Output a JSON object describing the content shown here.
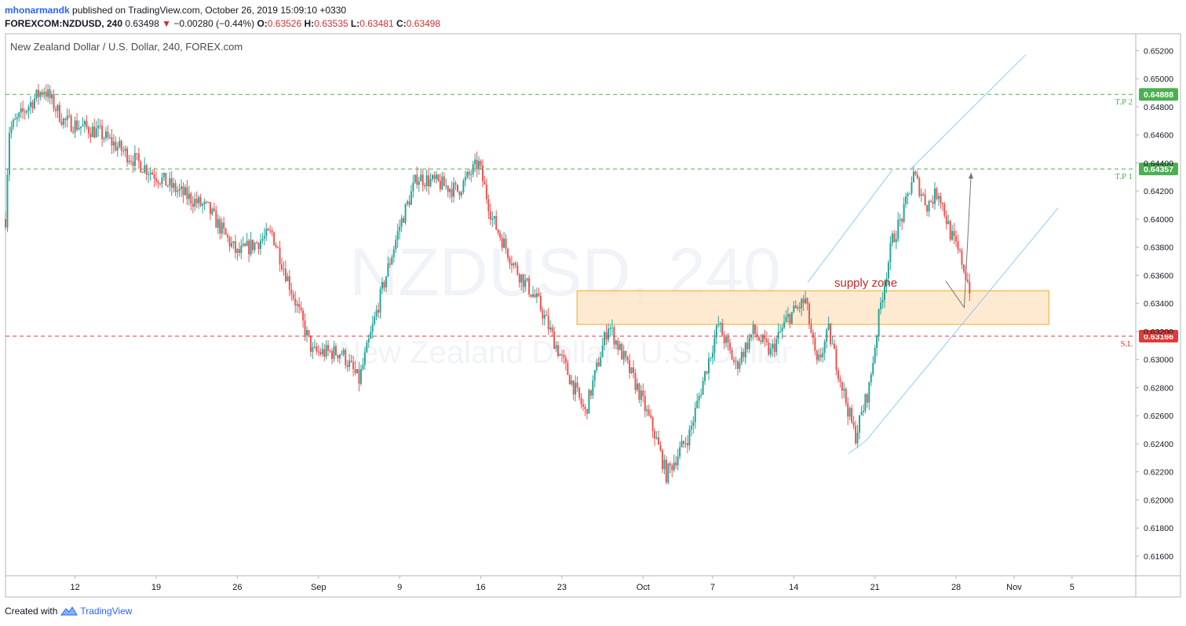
{
  "header": {
    "author": "mhonarmandk",
    "published": "published on TradingView.com, October 26, 2019 15:09:10 +0330",
    "symbol": "FOREXCOM:NZDUSD, 240",
    "last": "0.63498",
    "change": "−0.00280 (−0.44%)",
    "o_label": "O:",
    "o": "0.63526",
    "h_label": "H:",
    "h": "0.63535",
    "l_label": "L:",
    "l": "0.63481",
    "c_label": "C:",
    "c": "0.63498"
  },
  "footer": {
    "created_with": "Created with",
    "brand": "TradingView"
  },
  "colors": {
    "up": "#26a69a",
    "down": "#ef5350",
    "tp": "#4caf50",
    "sl": "#e53935",
    "zone_fill": "#fde3c0",
    "zone_border": "#f5a623",
    "channel": "#90caf9",
    "arrow": "#757575"
  },
  "chart_data": {
    "type": "candlestick",
    "title": "New Zealand Dollar / U.S. Dollar, 240, FOREX.com",
    "watermark_symbol": "NZDUSD, 240",
    "watermark_name": "New Zealand Dollar / U.S. Dollar",
    "ylim": [
      0.6146,
      0.6532
    ],
    "y_ticks": [
      "0.65200",
      "0.65000",
      "0.64800",
      "0.64600",
      "0.64400",
      "0.64200",
      "0.64000",
      "0.63800",
      "0.63600",
      "0.63400",
      "0.63200",
      "0.63000",
      "0.62800",
      "0.62600",
      "0.62400",
      "0.62200",
      "0.62000",
      "0.61800",
      "0.61600"
    ],
    "x_ticks": [
      {
        "label": "12",
        "day": 12
      },
      {
        "label": "19",
        "day": 19
      },
      {
        "label": "26",
        "day": 26
      },
      {
        "label": "Sep",
        "day": 33
      },
      {
        "label": "9",
        "day": 40
      },
      {
        "label": "16",
        "day": 47
      },
      {
        "label": "23",
        "day": 54
      },
      {
        "label": "Oct",
        "day": 61
      },
      {
        "label": "7",
        "day": 67
      },
      {
        "label": "14",
        "day": 74
      },
      {
        "label": "21",
        "day": 81
      },
      {
        "label": "28",
        "day": 88
      },
      {
        "label": "Nov",
        "day": 93
      },
      {
        "label": "5",
        "day": 98
      }
    ],
    "horizontal_lines": [
      {
        "label": "T.P 2",
        "price": "0.64888",
        "value": 0.64888,
        "kind": "tp"
      },
      {
        "label": "T.P 1",
        "price": "0.64357",
        "value": 0.64357,
        "kind": "tp"
      },
      {
        "label": "S.L",
        "price": "0.63166",
        "value": 0.63166,
        "kind": "sl"
      }
    ],
    "zone": {
      "label": "supply zone",
      "y_low": 0.6325,
      "y_high": 0.6349,
      "day_start": 55.3,
      "day_end": 96.0
    },
    "channel_lines": [
      {
        "p1": {
          "day": 84.0,
          "y": 0.6435
        },
        "p2": {
          "day": 94.0,
          "y": 0.6517
        }
      },
      {
        "p1": {
          "day": 75.2,
          "y": 0.6355
        },
        "p2": {
          "day": 82.5,
          "y": 0.6435
        }
      },
      {
        "p1": {
          "day": 80.2,
          "y": 0.6242
        },
        "p2": {
          "day": 96.8,
          "y": 0.6408
        }
      },
      {
        "p1": {
          "day": 78.7,
          "y": 0.6233
        },
        "p2": {
          "day": 80.2,
          "y": 0.6242
        }
      }
    ],
    "projection_arrow": [
      {
        "day": 87.1,
        "y": 0.6356
      },
      {
        "day": 88.7,
        "y": 0.6337
      },
      {
        "day": 89.3,
        "y": 0.6433
      }
    ],
    "path_anchors": [
      {
        "day": 6.0,
        "y": 0.64
      },
      {
        "day": 6.3,
        "y": 0.6463
      },
      {
        "day": 8.2,
        "y": 0.6483
      },
      {
        "day": 9.3,
        "y": 0.6493
      },
      {
        "day": 11.0,
        "y": 0.647
      },
      {
        "day": 14.0,
        "y": 0.6462
      },
      {
        "day": 17.0,
        "y": 0.6443
      },
      {
        "day": 20.5,
        "y": 0.6422
      },
      {
        "day": 23.5,
        "y": 0.6407
      },
      {
        "day": 26.0,
        "y": 0.6375
      },
      {
        "day": 29.0,
        "y": 0.639
      },
      {
        "day": 32.5,
        "y": 0.6305
      },
      {
        "day": 35.0,
        "y": 0.6305
      },
      {
        "day": 36.5,
        "y": 0.6285
      },
      {
        "day": 38.5,
        "y": 0.635
      },
      {
        "day": 40.0,
        "y": 0.6395
      },
      {
        "day": 41.5,
        "y": 0.643
      },
      {
        "day": 43.5,
        "y": 0.6425
      },
      {
        "day": 45.0,
        "y": 0.642
      },
      {
        "day": 46.8,
        "y": 0.644
      },
      {
        "day": 48.0,
        "y": 0.64
      },
      {
        "day": 50.0,
        "y": 0.6365
      },
      {
        "day": 52.0,
        "y": 0.634
      },
      {
        "day": 54.0,
        "y": 0.63
      },
      {
        "day": 56.0,
        "y": 0.6262
      },
      {
        "day": 58.0,
        "y": 0.6325
      },
      {
        "day": 60.5,
        "y": 0.628
      },
      {
        "day": 62.0,
        "y": 0.6247
      },
      {
        "day": 63.0,
        "y": 0.6218
      },
      {
        "day": 65.0,
        "y": 0.6247
      },
      {
        "day": 66.5,
        "y": 0.6295
      },
      {
        "day": 67.5,
        "y": 0.6325
      },
      {
        "day": 69.0,
        "y": 0.6295
      },
      {
        "day": 70.5,
        "y": 0.632
      },
      {
        "day": 72.0,
        "y": 0.6305
      },
      {
        "day": 73.5,
        "y": 0.633
      },
      {
        "day": 75.0,
        "y": 0.6342
      },
      {
        "day": 76.0,
        "y": 0.6295
      },
      {
        "day": 77.0,
        "y": 0.632
      },
      {
        "day": 78.5,
        "y": 0.627
      },
      {
        "day": 79.3,
        "y": 0.6245
      },
      {
        "day": 80.5,
        "y": 0.628
      },
      {
        "day": 81.5,
        "y": 0.634
      },
      {
        "day": 82.5,
        "y": 0.6385
      },
      {
        "day": 83.5,
        "y": 0.6405
      },
      {
        "day": 84.3,
        "y": 0.6432
      },
      {
        "day": 85.5,
        "y": 0.641
      },
      {
        "day": 86.5,
        "y": 0.642
      },
      {
        "day": 87.5,
        "y": 0.639
      },
      {
        "day": 88.5,
        "y": 0.637
      },
      {
        "day": 89.2,
        "y": 0.635
      }
    ]
  }
}
